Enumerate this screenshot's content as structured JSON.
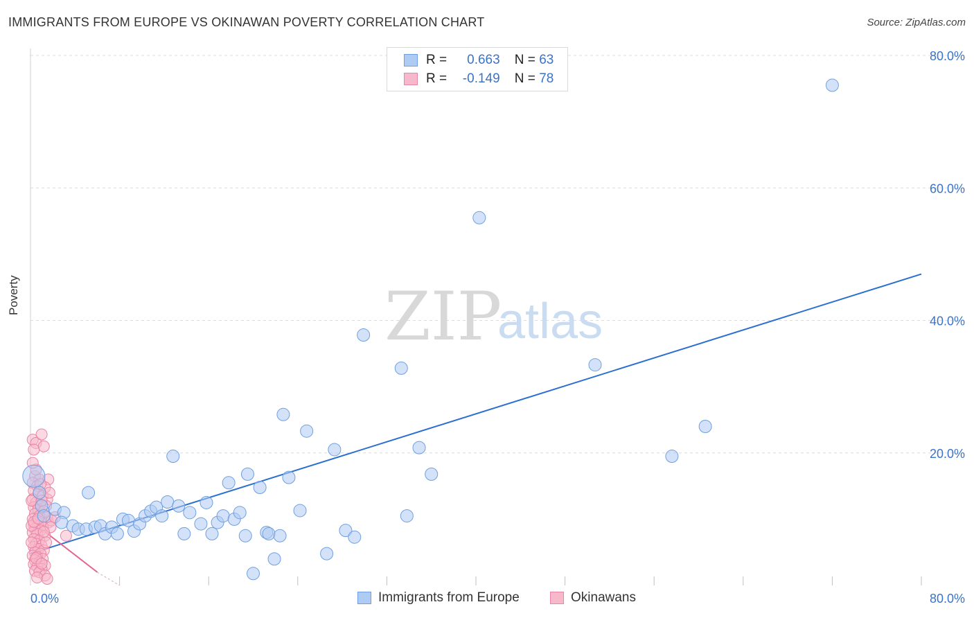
{
  "title": "IMMIGRANTS FROM EUROPE VS OKINAWAN POVERTY CORRELATION CHART",
  "source": "Source: ZipAtlas.com",
  "watermark": {
    "zip": "ZIP",
    "atlas": "atlas"
  },
  "legend": {
    "rows": [
      {
        "r_label": "R =",
        "r_value": "0.663",
        "n_label": "N =",
        "n_value": "63"
      },
      {
        "r_label": "R =",
        "r_value": "-0.149",
        "n_label": "N =",
        "n_value": "78"
      }
    ]
  },
  "bottom_legend": [
    "Immigrants from Europe",
    "Okinawans"
  ],
  "colors": {
    "blue_fill": "#aecbf3",
    "blue_stroke": "#6e9fe0",
    "blue_line": "#2b6fd1",
    "pink_fill": "#f7b8cb",
    "pink_stroke": "#e884a5",
    "pink_line": "#e46490",
    "tick_text": "#3a73c8",
    "grid": "#dcdcdc"
  },
  "chart_data": {
    "type": "scatter",
    "title": "IMMIGRANTS FROM EUROPE VS OKINAWAN POVERTY CORRELATION CHART",
    "xlabel": "",
    "ylabel": "Poverty",
    "xlim": [
      0,
      80
    ],
    "ylim": [
      0,
      80
    ],
    "x_tick_labels": [
      "0.0%",
      "80.0%"
    ],
    "y_ticks": [
      20,
      40,
      60,
      80
    ],
    "y_tick_labels": [
      "20.0%",
      "40.0%",
      "60.0%",
      "80.0%"
    ],
    "grid": true,
    "legend_position": "top-center",
    "series": [
      {
        "name": "Immigrants from Europe",
        "r": 0.663,
        "n": 63,
        "trend": {
          "x0": 0,
          "y0": 4.8,
          "x1": 80,
          "y1": 47
        },
        "points": [
          [
            0.3,
            16.5
          ],
          [
            0.8,
            14.0
          ],
          [
            1.0,
            12.0
          ],
          [
            1.2,
            10.5
          ],
          [
            2.2,
            11.5
          ],
          [
            3.0,
            11.0
          ],
          [
            2.8,
            9.5
          ],
          [
            3.8,
            9.0
          ],
          [
            4.3,
            8.5
          ],
          [
            5.0,
            8.5
          ],
          [
            5.2,
            14.0
          ],
          [
            5.8,
            8.8
          ],
          [
            6.3,
            9.0
          ],
          [
            6.7,
            7.8
          ],
          [
            7.3,
            8.8
          ],
          [
            7.8,
            7.8
          ],
          [
            8.3,
            10.0
          ],
          [
            8.8,
            9.8
          ],
          [
            9.3,
            8.2
          ],
          [
            9.8,
            9.3
          ],
          [
            10.3,
            10.5
          ],
          [
            10.8,
            11.2
          ],
          [
            11.3,
            11.8
          ],
          [
            11.8,
            10.5
          ],
          [
            12.3,
            12.6
          ],
          [
            12.8,
            19.5
          ],
          [
            13.3,
            12.0
          ],
          [
            13.8,
            7.8
          ],
          [
            14.3,
            11.0
          ],
          [
            15.3,
            9.3
          ],
          [
            15.8,
            12.5
          ],
          [
            16.3,
            7.8
          ],
          [
            16.8,
            9.5
          ],
          [
            17.3,
            10.5
          ],
          [
            17.8,
            15.5
          ],
          [
            18.3,
            10.0
          ],
          [
            18.8,
            11.0
          ],
          [
            19.3,
            7.5
          ],
          [
            19.5,
            16.8
          ],
          [
            20.6,
            14.8
          ],
          [
            21.2,
            8.0
          ],
          [
            21.4,
            7.8
          ],
          [
            21.9,
            4.0
          ],
          [
            22.4,
            7.5
          ],
          [
            22.7,
            25.8
          ],
          [
            23.2,
            16.3
          ],
          [
            24.2,
            11.3
          ],
          [
            24.8,
            23.3
          ],
          [
            26.6,
            4.8
          ],
          [
            27.3,
            20.5
          ],
          [
            28.3,
            8.3
          ],
          [
            29.1,
            7.3
          ],
          [
            29.9,
            37.8
          ],
          [
            33.3,
            32.8
          ],
          [
            33.8,
            10.5
          ],
          [
            34.9,
            20.8
          ],
          [
            36.0,
            16.8
          ],
          [
            40.3,
            55.5
          ],
          [
            50.7,
            33.3
          ],
          [
            57.6,
            19.5
          ],
          [
            60.6,
            24.0
          ],
          [
            72.0,
            75.5
          ],
          [
            20.0,
            1.8
          ]
        ]
      },
      {
        "name": "Okinawans",
        "r": -0.149,
        "n": 78,
        "trend": {
          "x0": 0,
          "y0": 9.8,
          "x1": 6,
          "y1": 2.0,
          "dashed_to": {
            "x": 8,
            "y": 0
          }
        },
        "points": [
          [
            0.2,
            22.0
          ],
          [
            0.5,
            21.5
          ],
          [
            0.3,
            20.5
          ],
          [
            1.0,
            22.8
          ],
          [
            1.2,
            21.0
          ],
          [
            0.4,
            16.5
          ],
          [
            0.8,
            16.0
          ],
          [
            1.6,
            16.0
          ],
          [
            0.2,
            15.5
          ],
          [
            0.6,
            15.0
          ],
          [
            1.3,
            14.8
          ],
          [
            0.3,
            14.3
          ],
          [
            0.7,
            13.8
          ],
          [
            1.1,
            13.5
          ],
          [
            1.5,
            13.0
          ],
          [
            0.2,
            13.0
          ],
          [
            0.5,
            12.5
          ],
          [
            0.9,
            12.2
          ],
          [
            1.4,
            12.0
          ],
          [
            0.3,
            11.8
          ],
          [
            0.7,
            11.5
          ],
          [
            1.2,
            11.2
          ],
          [
            0.4,
            10.8
          ],
          [
            0.8,
            10.5
          ],
          [
            1.5,
            10.3
          ],
          [
            0.2,
            10.0
          ],
          [
            0.6,
            9.8
          ],
          [
            1.0,
            9.5
          ],
          [
            1.6,
            9.5
          ],
          [
            0.3,
            9.2
          ],
          [
            0.7,
            9.0
          ],
          [
            1.1,
            8.8
          ],
          [
            0.4,
            8.5
          ],
          [
            0.9,
            8.3
          ],
          [
            0.2,
            8.0
          ],
          [
            0.6,
            7.8
          ],
          [
            1.3,
            7.5
          ],
          [
            0.3,
            7.0
          ],
          [
            0.8,
            6.8
          ],
          [
            0.5,
            6.3
          ],
          [
            1.0,
            6.0
          ],
          [
            0.3,
            5.8
          ],
          [
            0.7,
            5.5
          ],
          [
            1.2,
            5.3
          ],
          [
            0.4,
            5.0
          ],
          [
            0.9,
            4.8
          ],
          [
            0.2,
            4.5
          ],
          [
            0.6,
            4.3
          ],
          [
            1.1,
            4.0
          ],
          [
            0.4,
            3.8
          ],
          [
            0.8,
            3.5
          ],
          [
            0.3,
            3.2
          ],
          [
            1.3,
            3.0
          ],
          [
            0.6,
            2.8
          ],
          [
            1.0,
            2.5
          ],
          [
            0.4,
            2.2
          ],
          [
            0.8,
            2.0
          ],
          [
            1.3,
            1.5
          ],
          [
            0.6,
            1.2
          ],
          [
            1.5,
            1.0
          ],
          [
            3.2,
            7.5
          ],
          [
            1.9,
            9.8
          ],
          [
            2.2,
            10.3
          ],
          [
            0.1,
            12.8
          ],
          [
            0.1,
            9.0
          ],
          [
            0.1,
            6.5
          ],
          [
            0.5,
            17.5
          ],
          [
            1.7,
            14.0
          ],
          [
            1.0,
            12.8
          ],
          [
            0.2,
            18.5
          ],
          [
            1.4,
            6.5
          ],
          [
            0.9,
            15.3
          ],
          [
            1.8,
            8.8
          ],
          [
            0.3,
            9.6
          ],
          [
            0.7,
            10.1
          ],
          [
            1.2,
            8.1
          ],
          [
            0.5,
            4.1
          ],
          [
            1.0,
            3.3
          ]
        ]
      }
    ]
  }
}
